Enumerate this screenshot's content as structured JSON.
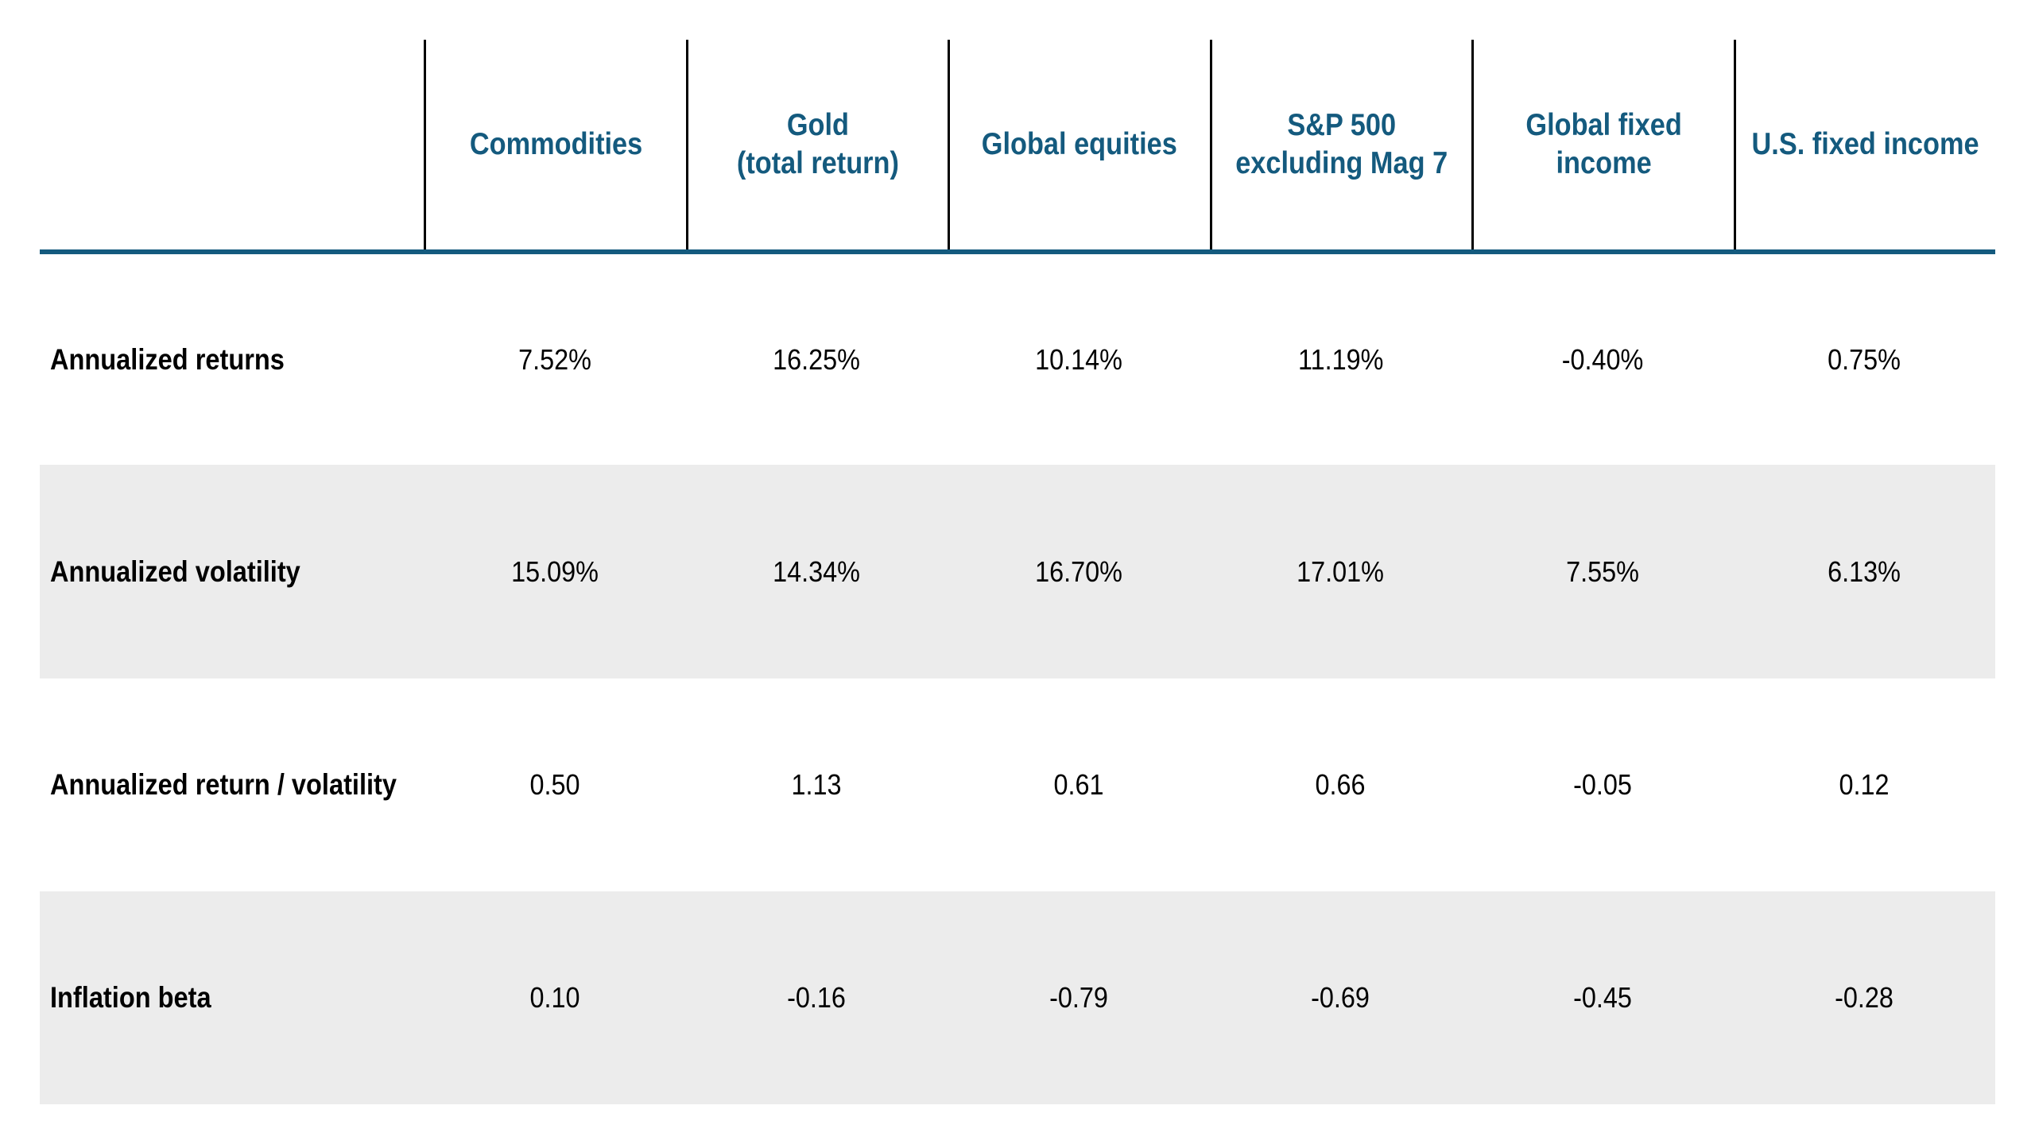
{
  "table": {
    "columns": [
      {
        "label": "Commodities"
      },
      {
        "label": "Gold\n(total return)"
      },
      {
        "label": "Global equities"
      },
      {
        "label": "S&P 500\nexcluding Mag 7"
      },
      {
        "label": "Global fixed\nincome"
      },
      {
        "label": "U.S. fixed income"
      }
    ],
    "rows": [
      {
        "label": "Annualized returns",
        "values": [
          "7.52%",
          "16.25%",
          "10.14%",
          "11.19%",
          "-0.40%",
          "0.75%"
        ]
      },
      {
        "label": "Annualized volatility",
        "values": [
          "15.09%",
          "14.34%",
          "16.70%",
          "17.01%",
          "7.55%",
          "6.13%"
        ]
      },
      {
        "label": "Annualized return / volatility",
        "values": [
          "0.50",
          "1.13",
          "0.61",
          "0.66",
          "-0.05",
          "0.12"
        ]
      },
      {
        "label": "Inflation beta",
        "values": [
          "0.10",
          "-0.16",
          "-0.79",
          "-0.69",
          "-0.45",
          "-0.28"
        ]
      }
    ]
  },
  "colors": {
    "header_text_blue": "#145A7E",
    "header_rule_blue": "#145A7E",
    "row_shade_gray": "#ECECEC",
    "column_separator_black": "#000000",
    "body_text_black": "#000000"
  },
  "chart_data": {
    "type": "table",
    "title": "",
    "columns": [
      "Commodities",
      "Gold (total return)",
      "Global equities",
      "S&P 500 excluding Mag 7",
      "Global fixed income",
      "U.S. fixed income"
    ],
    "row_labels": [
      "Annualized returns",
      "Annualized volatility",
      "Annualized return / volatility",
      "Inflation beta"
    ],
    "cells": [
      [
        "7.52%",
        "16.25%",
        "10.14%",
        "11.19%",
        "-0.40%",
        "0.75%"
      ],
      [
        "15.09%",
        "14.34%",
        "16.70%",
        "17.01%",
        "7.55%",
        "6.13%"
      ],
      [
        "0.50",
        "1.13",
        "0.61",
        "0.66",
        "-0.05",
        "0.12"
      ],
      [
        "0.10",
        "-0.16",
        "-0.79",
        "-0.69",
        "-0.45",
        "-0.28"
      ]
    ],
    "numeric_series": [
      {
        "name": "Annualized returns (%)",
        "values": [
          7.52,
          16.25,
          10.14,
          11.19,
          -0.4,
          0.75
        ]
      },
      {
        "name": "Annualized volatility (%)",
        "values": [
          15.09,
          14.34,
          16.7,
          17.01,
          7.55,
          6.13
        ]
      },
      {
        "name": "Annualized return / volatility",
        "values": [
          0.5,
          1.13,
          0.61,
          0.66,
          -0.05,
          0.12
        ]
      },
      {
        "name": "Inflation beta",
        "values": [
          0.1,
          -0.16,
          -0.79,
          -0.69,
          -0.45,
          -0.28
        ]
      }
    ],
    "layout": {
      "striped_rows": "even rows shaded #ECECEC",
      "header_separator": "blue rule",
      "column_separators": "black vertical lines in header only"
    }
  }
}
